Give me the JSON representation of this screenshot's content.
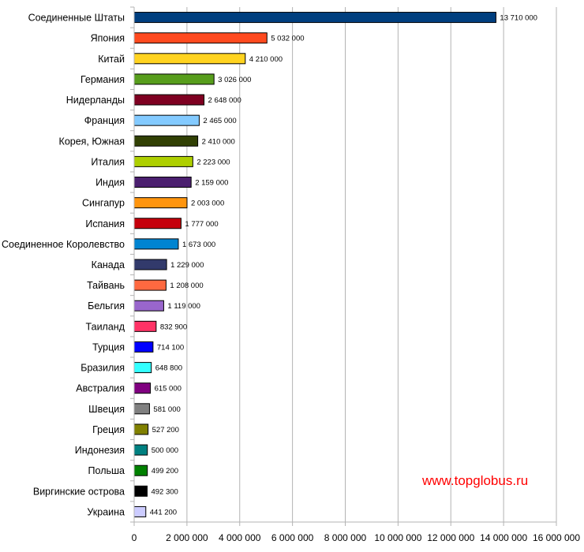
{
  "chart_data": {
    "type": "bar",
    "orientation": "horizontal",
    "categories": [
      "Соединенные Штаты",
      "Япония",
      "Китай",
      "Германия",
      "Нидерланды",
      "Франция",
      "Корея, Южная",
      "Италия",
      "Индия",
      "Сингапур",
      "Испания",
      "Соединенное Королевство",
      "Канада",
      "Тайвань",
      "Бельгия",
      "Таиланд",
      "Турция",
      "Бразилия",
      "Австралия",
      "Швеция",
      "Греция",
      "Индонезия",
      "Польша",
      "Виргинские острова",
      "Украина"
    ],
    "values": [
      13710000,
      5032000,
      4210000,
      3026000,
      2648000,
      2465000,
      2410000,
      2223000,
      2159000,
      2003000,
      1777000,
      1673000,
      1229000,
      1208000,
      1119000,
      832900,
      714100,
      648800,
      615000,
      581000,
      527200,
      500000,
      499200,
      492300,
      441200
    ],
    "value_labels": [
      "13 710 000",
      "5 032 000",
      "4 210 000",
      "3 026 000",
      "2 648 000",
      "2 465 000",
      "2 410 000",
      "2 223 000",
      "2 159 000",
      "2 003 000",
      "1 777 000",
      "1 673 000",
      "1 229 000",
      "1 208 000",
      "1 119 000",
      "832 900",
      "714 100",
      "648 800",
      "615 000",
      "581 000",
      "527 200",
      "500 000",
      "499 200",
      "492 300",
      "441 200"
    ],
    "colors": [
      "#003f7f",
      "#ff4a1f",
      "#ffd320",
      "#579d1c",
      "#7e0021",
      "#83caff",
      "#314004",
      "#aecf00",
      "#4b1f6f",
      "#ff950e",
      "#c5000b",
      "#0084d1",
      "#323a6b",
      "#ff6940",
      "#9966cc",
      "#ff3366",
      "#0000ff",
      "#33ffff",
      "#800080",
      "#808080",
      "#808000",
      "#008080",
      "#008000",
      "#000000",
      "#ccccff"
    ],
    "xlim": [
      0,
      16000000
    ],
    "x_ticks": [
      0,
      2000000,
      4000000,
      6000000,
      8000000,
      10000000,
      12000000,
      14000000,
      16000000
    ],
    "x_tick_labels": [
      "0",
      "2 000 000",
      "4 000 000",
      "6 000 000",
      "8 000 000",
      "10 000 000",
      "12 000 000",
      "14 000 000",
      "16 000 000"
    ],
    "grid": "vertical"
  },
  "watermark": "www.topglobus.ru"
}
